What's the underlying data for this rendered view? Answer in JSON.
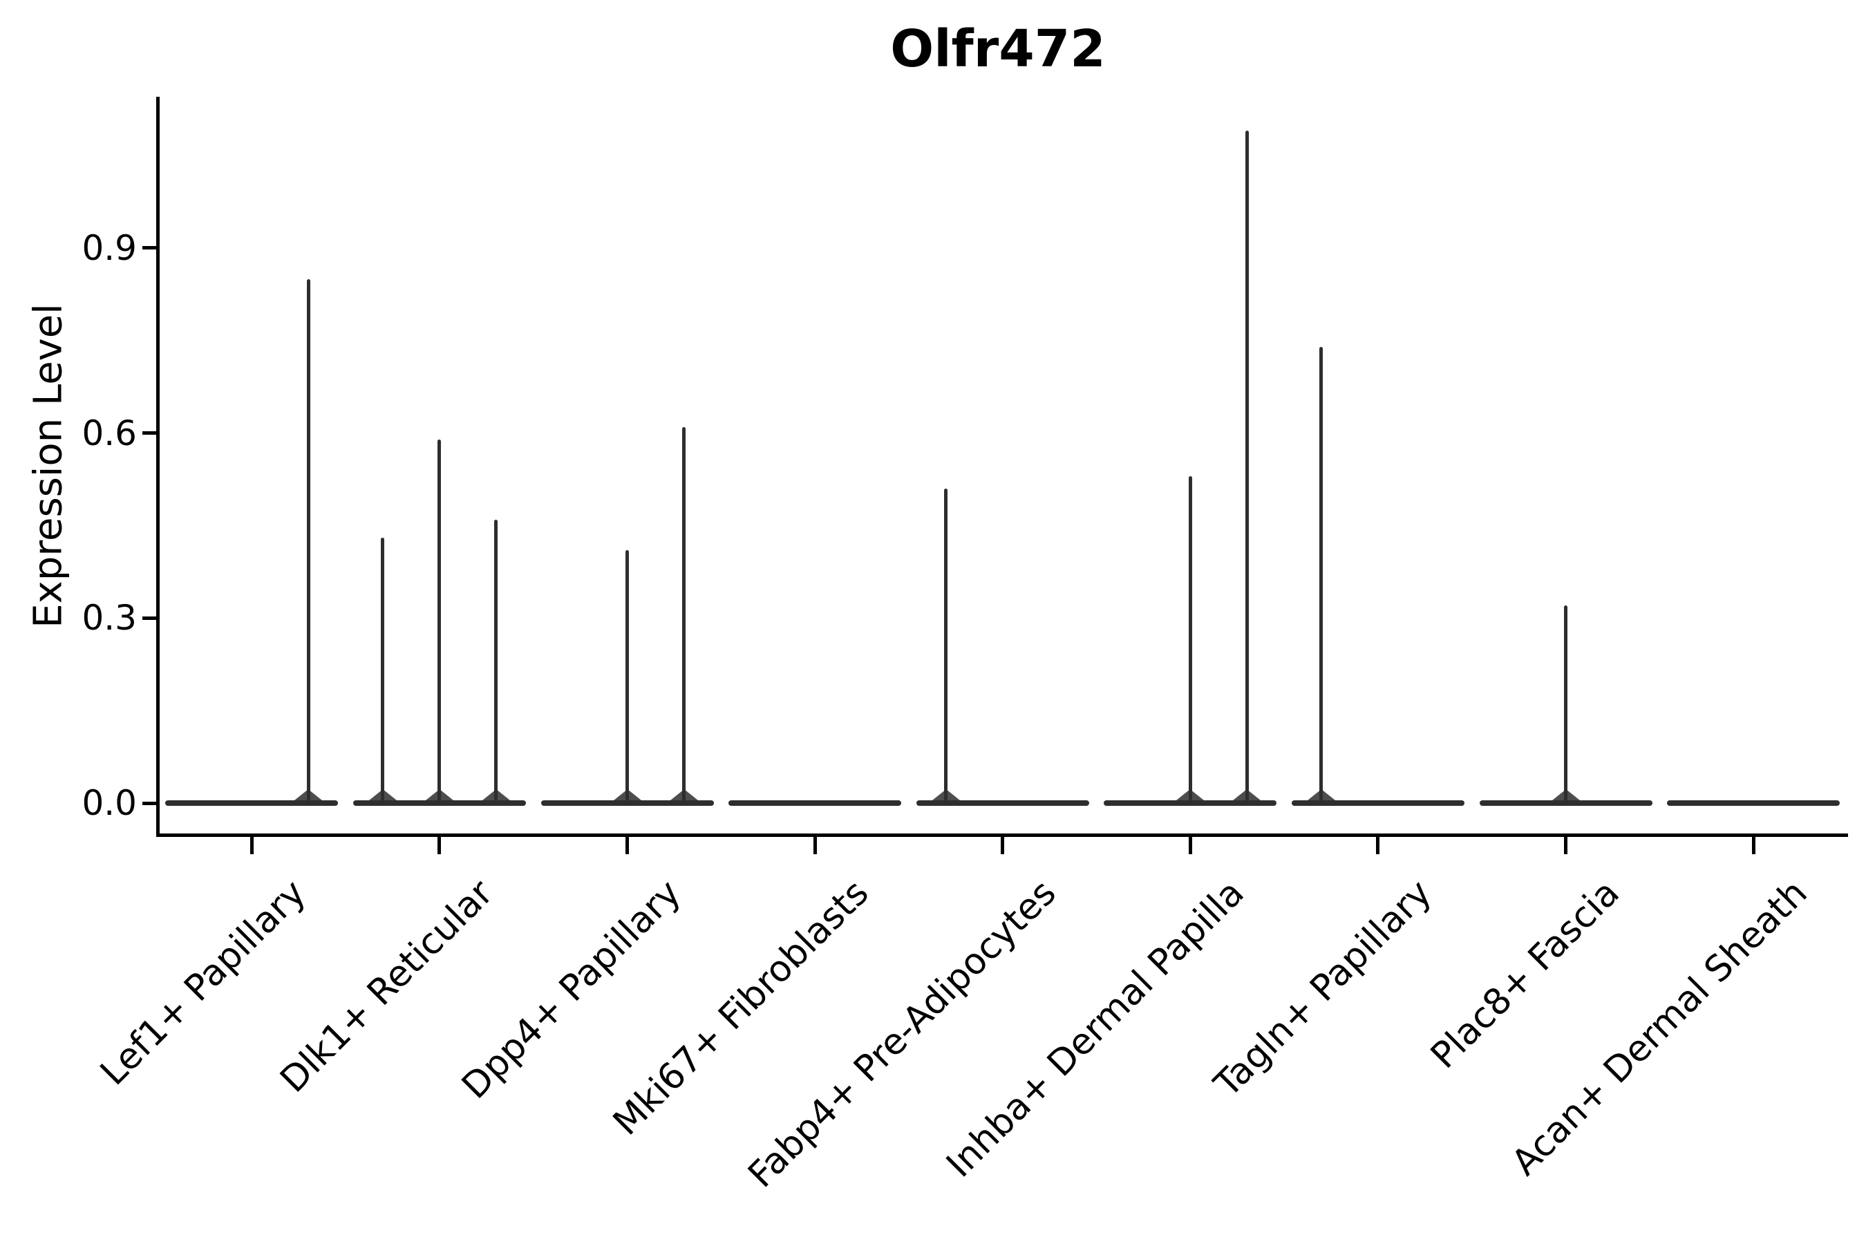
{
  "title": "Olfr472",
  "y_axis": {
    "label": "Expression Level",
    "tick_labels": [
      "0.0",
      "0.3",
      "0.6",
      "0.9"
    ],
    "tick_values": [
      0.0,
      0.3,
      0.6,
      0.9
    ]
  },
  "chart_data": {
    "type": "violin",
    "title": "Olfr472",
    "ylabel": "Expression Level",
    "xlabel": "",
    "ylim": [
      -0.05,
      1.15
    ],
    "grid": false,
    "legend": "none",
    "violin_color": "#2e2e2e",
    "axis_color": "#000000",
    "categories": [
      "Lef1+ Papillary",
      "Dlk1+ Reticular",
      "Dpp4+ Papillary",
      "Mki67+ Fibroblasts",
      "Fabp4+ Pre-Adipocytes",
      "Inhba+ Dermal Papilla",
      "Tagln+ Papillary",
      "Plac8+ Fascia",
      "Acan+ Dermal Sheath"
    ],
    "description": "Each category shows a violin collapsed to a flat bar at expression 0 with thin vertical spikes at the few non-zero expression values; offset_frac is the spike's horizontal offset within the category slot.",
    "violins": [
      {
        "category": "Lef1+ Papillary",
        "baseline_value": 0.0,
        "max_value": 0.85,
        "spikes": [
          {
            "value": 0.85,
            "offset_frac": 0.302
          }
        ]
      },
      {
        "category": "Dlk1+ Reticular",
        "baseline_value": 0.0,
        "max_value": 0.59,
        "spikes": [
          {
            "value": 0.43,
            "offset_frac": -0.302
          },
          {
            "value": 0.59,
            "offset_frac": 0.0
          },
          {
            "value": 0.46,
            "offset_frac": 0.302
          }
        ]
      },
      {
        "category": "Dpp4+ Papillary",
        "baseline_value": 0.0,
        "max_value": 0.61,
        "spikes": [
          {
            "value": 0.41,
            "offset_frac": 0.0
          },
          {
            "value": 0.61,
            "offset_frac": 0.302
          }
        ]
      },
      {
        "category": "Mki67+ Fibroblasts",
        "baseline_value": 0.0,
        "max_value": 0.0,
        "spikes": []
      },
      {
        "category": "Fabp4+ Pre-Adipocytes",
        "baseline_value": 0.0,
        "max_value": 0.51,
        "spikes": [
          {
            "value": 0.51,
            "offset_frac": -0.302
          }
        ]
      },
      {
        "category": "Inhba+ Dermal Papilla",
        "baseline_value": 0.0,
        "max_value": 1.09,
        "spikes": [
          {
            "value": 0.53,
            "offset_frac": 0.0
          },
          {
            "value": 1.09,
            "offset_frac": 0.302
          }
        ]
      },
      {
        "category": "Tagln+ Papillary",
        "baseline_value": 0.0,
        "max_value": 0.74,
        "spikes": [
          {
            "value": 0.74,
            "offset_frac": -0.302
          }
        ]
      },
      {
        "category": "Plac8+ Fascia",
        "baseline_value": 0.0,
        "max_value": 0.32,
        "spikes": [
          {
            "value": 0.32,
            "offset_frac": 0.0
          }
        ]
      },
      {
        "category": "Acan+ Dermal Sheath",
        "baseline_value": 0.0,
        "max_value": 0.0,
        "spikes": []
      }
    ]
  }
}
